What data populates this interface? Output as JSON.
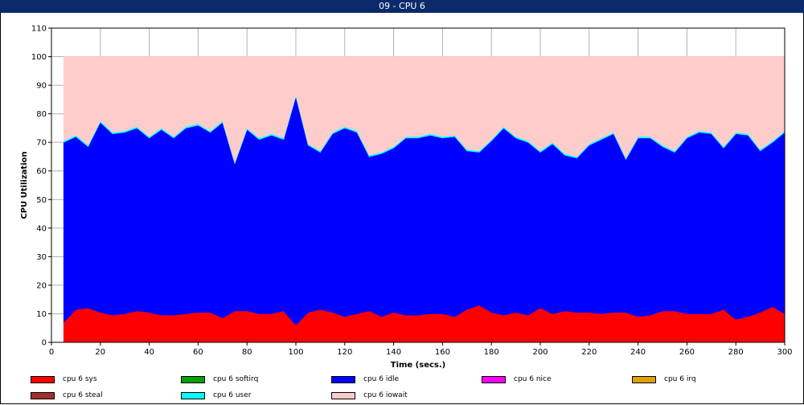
{
  "window": {
    "title": "09 - CPU 6"
  },
  "chart_data": {
    "type": "area",
    "stacked": true,
    "title": "09 - CPU 6",
    "xlabel": "Time (secs.)",
    "ylabel": "CPU Utilization",
    "xlim": [
      0,
      300
    ],
    "ylim": [
      0,
      110
    ],
    "xticks": [
      0,
      20,
      40,
      60,
      80,
      100,
      120,
      140,
      160,
      180,
      200,
      220,
      240,
      260,
      280,
      300
    ],
    "yticks": [
      0,
      10,
      20,
      30,
      40,
      50,
      60,
      70,
      80,
      90,
      100,
      110
    ],
    "grid": true,
    "legend_position": "bottom",
    "x": [
      5,
      10,
      15,
      20,
      25,
      30,
      35,
      40,
      45,
      50,
      55,
      60,
      65,
      70,
      75,
      80,
      85,
      90,
      95,
      100,
      105,
      110,
      115,
      120,
      125,
      130,
      135,
      140,
      145,
      150,
      155,
      160,
      165,
      170,
      175,
      180,
      185,
      190,
      195,
      200,
      205,
      210,
      215,
      220,
      225,
      230,
      235,
      240,
      245,
      250,
      255,
      260,
      265,
      270,
      275,
      280,
      285,
      290,
      295,
      300
    ],
    "series": [
      {
        "name": "cpu 6 sys",
        "color": "#ff0000",
        "values": [
          7,
          11.5,
          12,
          10.5,
          9.5,
          10,
          11,
          10.5,
          9.5,
          9.5,
          10,
          10.5,
          10.5,
          8.5,
          11,
          11,
          10,
          10,
          11,
          6,
          10.5,
          11.5,
          10.5,
          9,
          10,
          11,
          9,
          10.5,
          9.5,
          9.5,
          10,
          10,
          9,
          11.5,
          13,
          10.5,
          9.5,
          10.5,
          9.5,
          12,
          10,
          11,
          10.5,
          10.5,
          10,
          10.5,
          10.5,
          9,
          9.5,
          11,
          11,
          10,
          10,
          10,
          11.5,
          8,
          9,
          10.5,
          12.5,
          10
        ]
      },
      {
        "name": "cpu 6 softirq",
        "color": "#00a000",
        "values": [
          0,
          0,
          0,
          0,
          0,
          0,
          0,
          0,
          0,
          0,
          0,
          0,
          0,
          0,
          0,
          0,
          0,
          0,
          0,
          0,
          0,
          0,
          0,
          0,
          0,
          0,
          0,
          0,
          0,
          0,
          0,
          0,
          0,
          0,
          0,
          0,
          0,
          0,
          0,
          0,
          0,
          0,
          0,
          0,
          0,
          0,
          0,
          0,
          0,
          0,
          0,
          0,
          0,
          0,
          0,
          0,
          0,
          0,
          0,
          0
        ]
      },
      {
        "name": "cpu 6 idle",
        "color": "#0000ff",
        "values": [
          63,
          60.5,
          56.5,
          66.5,
          63.5,
          63.5,
          64,
          61,
          65,
          62,
          65,
          65.5,
          63,
          68.5,
          51.5,
          63.5,
          61,
          62.5,
          60,
          80,
          58.5,
          55,
          62.5,
          66,
          63.5,
          54,
          57,
          57.5,
          62,
          62,
          62.5,
          61.5,
          63,
          55.5,
          53.5,
          60,
          65.5,
          61,
          60.5,
          54.5,
          59.5,
          54.5,
          54,
          58.5,
          61,
          62.5,
          53.5,
          62.5,
          62,
          57.5,
          55.5,
          61.5,
          63.5,
          63,
          56.5,
          65,
          63.5,
          56.5,
          57.5,
          63.5
        ]
      },
      {
        "name": "cpu 6 nice",
        "color": "#ff00ff",
        "values": [
          0,
          0,
          0,
          0,
          0,
          0,
          0,
          0,
          0,
          0,
          0,
          0,
          0,
          0,
          0,
          0,
          0,
          0,
          0,
          0,
          0,
          0,
          0,
          0,
          0,
          0,
          0,
          0,
          0,
          0,
          0,
          0,
          0,
          0,
          0,
          0,
          0,
          0,
          0,
          0,
          0,
          0,
          0,
          0,
          0,
          0,
          0,
          0,
          0,
          0,
          0,
          0,
          0,
          0,
          0,
          0,
          0,
          0,
          0,
          0
        ]
      },
      {
        "name": "cpu 6 irq",
        "color": "#e0a000",
        "values": [
          0,
          0,
          0,
          0,
          0,
          0,
          0,
          0,
          0,
          0,
          0,
          0,
          0,
          0,
          0,
          0,
          0,
          0,
          0,
          0,
          0,
          0,
          0,
          0,
          0,
          0,
          0,
          0,
          0,
          0,
          0,
          0,
          0,
          0,
          0,
          0,
          0,
          0,
          0,
          0,
          0,
          0,
          0,
          0,
          0,
          0,
          0,
          0,
          0,
          0,
          0,
          0,
          0,
          0,
          0,
          0,
          0,
          0,
          0,
          0
        ]
      },
      {
        "name": "cpu 6 steal",
        "color": "#a03030",
        "values": [
          0,
          0,
          0,
          0,
          0,
          0,
          0,
          0,
          0,
          0,
          0,
          0,
          0,
          0,
          0,
          0,
          0,
          0,
          0,
          0,
          0,
          0,
          0,
          0,
          0,
          0,
          0,
          0,
          0,
          0,
          0,
          0,
          0,
          0,
          0,
          0,
          0,
          0,
          0,
          0,
          0,
          0,
          0,
          0,
          0,
          0,
          0,
          0,
          0,
          0,
          0,
          0,
          0,
          0,
          0,
          0,
          0,
          0,
          0,
          0
        ]
      },
      {
        "name": "cpu 6 user",
        "color": "#00ffff",
        "values": [
          0.5,
          0.5,
          0.5,
          0.5,
          0.5,
          0.5,
          0.5,
          0.5,
          0.5,
          0.5,
          0.5,
          0.5,
          0.5,
          0.5,
          0.5,
          0.5,
          0.5,
          0.5,
          0.5,
          0.5,
          0.5,
          0.5,
          0.5,
          0.5,
          0.5,
          0.5,
          0.5,
          0.5,
          0.5,
          0.5,
          0.5,
          0.5,
          0.5,
          0.5,
          0.5,
          0.5,
          0.5,
          0.5,
          0.5,
          0.5,
          0.5,
          0.5,
          0.5,
          0.5,
          0.5,
          0.5,
          0.5,
          0.5,
          0.5,
          0.5,
          0.5,
          0.5,
          0.5,
          0.5,
          0.5,
          0.5,
          0.5,
          0.5,
          0.5,
          0.5
        ]
      },
      {
        "name": "cpu 6 iowait",
        "color": "#ffcccc",
        "values": [
          29.5,
          27.5,
          31,
          22.5,
          26.5,
          26,
          24.5,
          28,
          25,
          28,
          24.5,
          23.5,
          26,
          22.5,
          37,
          25,
          28.5,
          27,
          28.5,
          13.5,
          30.5,
          33,
          26.5,
          24.5,
          26,
          34.5,
          33.5,
          31.5,
          28,
          28,
          27,
          28,
          27.5,
          32.5,
          33,
          29,
          24.5,
          28,
          29.5,
          33,
          30,
          34,
          35,
          30.5,
          28.5,
          26.5,
          35.5,
          28,
          28,
          31,
          33,
          28,
          26,
          26.5,
          31.5,
          26.5,
          27,
          32.5,
          29.5,
          26
        ]
      }
    ]
  }
}
